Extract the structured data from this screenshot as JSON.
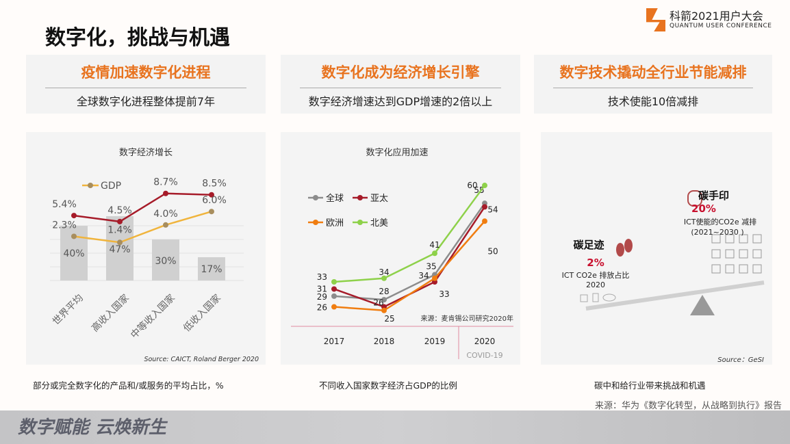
{
  "title": "数字化，挑战与机遇",
  "logo": {
    "name": "科箭2021用户大会",
    "sub": "QUANTUM USER CONFERENCE"
  },
  "columns": [
    {
      "heading": "疫情加速数字化进程",
      "sub": "全球数字化进程整体提前7年",
      "caption": "部分或完全数字化的产品和/或服务的平均占比，%"
    },
    {
      "heading": "数字化成为经济增长引擎",
      "sub": "数字经济增速达到GDP增速的2倍以上",
      "caption": "不同收入国家数字经济占GDP的比例"
    },
    {
      "heading": "数字技术撬动全行业节能减排",
      "sub": "技术使能10倍减排",
      "caption": "碳中和给行业带来挑战和机遇"
    }
  ],
  "chart_data": [
    {
      "type": "bar",
      "title": "数字经济增长",
      "categories": [
        "世界平均",
        "高收入国家",
        "中等收入国家",
        "低收入国家"
      ],
      "bar_values": [
        40,
        47,
        30,
        17
      ],
      "bar_labels": [
        "40%",
        "47%",
        "30%",
        "17%"
      ],
      "series": [
        {
          "values": [
            5.4,
            4.5,
            8.7,
            8.5
          ],
          "labels": [
            "5.4%",
            "4.5%",
            "8.7%",
            "8.5%"
          ],
          "color": "#a61b29"
        },
        {
          "name": "GDP",
          "values": [
            2.3,
            1.4,
            4.0,
            6.0
          ],
          "labels": [
            "2.3%",
            "1.4%",
            "4.0%",
            "6.0%"
          ],
          "color": "#f0b43c"
        }
      ],
      "bar_color": "#d0d0d0",
      "legend": "top-left",
      "source": "Source:  CAICT, Roland Berger 2020"
    },
    {
      "type": "line",
      "title": "数字化应用加速",
      "x": [
        "2017",
        "2018",
        "2019",
        "2020"
      ],
      "series": [
        {
          "name": "全球",
          "values": [
            29,
            28,
            35,
            55
          ],
          "color": "#8c8c8c"
        },
        {
          "name": "亚太",
          "values": [
            31,
            26,
            33,
            54
          ],
          "color": "#a61b29"
        },
        {
          "name": "欧洲",
          "values": [
            26,
            25,
            34,
            50
          ],
          "color": "#f07d10"
        },
        {
          "name": "北美",
          "values": [
            33,
            34,
            41,
            60
          ],
          "color": "#8ed14a"
        }
      ],
      "legend": "top-left",
      "source": "来源：麦肯锡公司研究2020年",
      "annotation": "COVID-19"
    }
  ],
  "carbon": {
    "footprint_title": "碳足迹",
    "footprint_value": "2%",
    "footprint_desc": "ICT CO2e 排放占比",
    "footprint_year": "2020",
    "handprint_title": "碳手印",
    "handprint_value": "20%",
    "handprint_desc": "ICT使能的CO2e 减排",
    "handprint_years": "(2021~2030 )",
    "source": "Source：GeSI",
    "accent": "#c8102e"
  },
  "slogan": "数字赋能 云焕新生",
  "source": "来源：华为《数字化转型，从战略到执行》报告"
}
